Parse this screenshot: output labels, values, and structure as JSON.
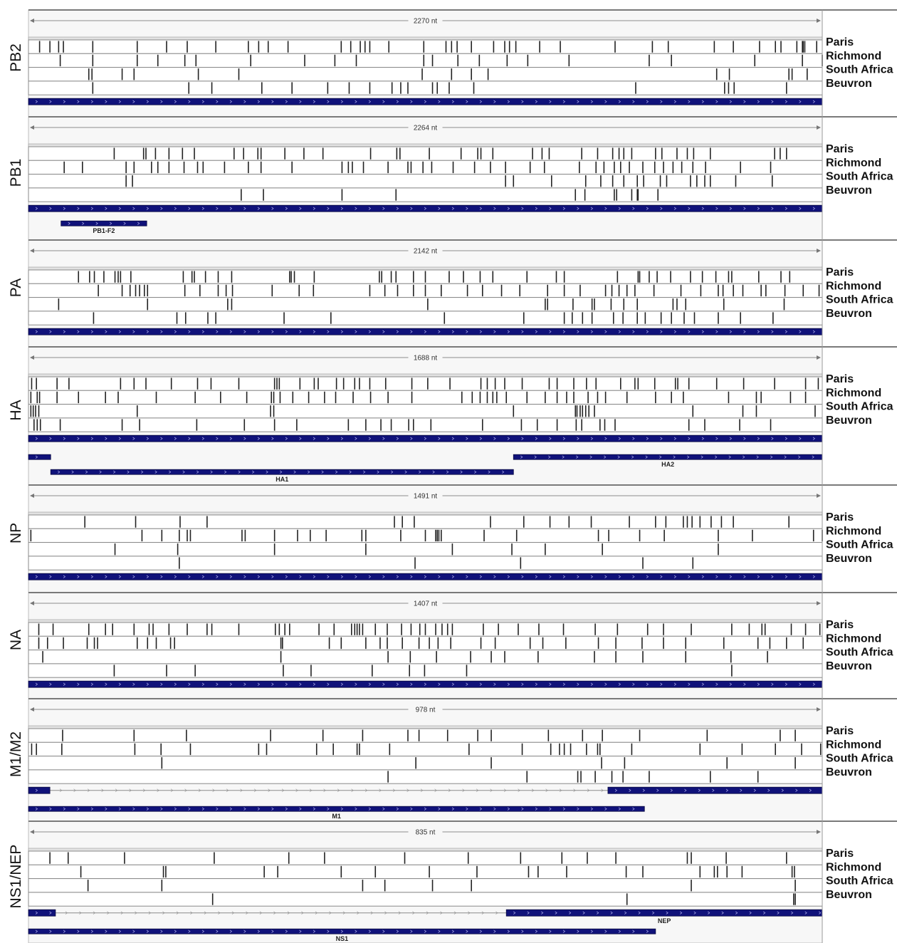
{
  "strains": [
    "Paris",
    "Richmond",
    "South Africa",
    "Beuvron"
  ],
  "segments": [
    {
      "name": "PB2",
      "length_label": "2270 nt",
      "mutations": [
        [
          0.014,
          0.027,
          0.038,
          0.044,
          0.081,
          0.137,
          0.174,
          0.2,
          0.236,
          0.277,
          0.29,
          0.302,
          0.327,
          0.394,
          0.406,
          0.418,
          0.424,
          0.43,
          0.454,
          0.498,
          0.526,
          0.533,
          0.54,
          0.558,
          0.586,
          0.6,
          0.606,
          0.614,
          0.644,
          0.67,
          0.739,
          0.786,
          0.806,
          0.864,
          0.888,
          0.921,
          0.941,
          0.948,
          0.968,
          0.975,
          0.976,
          0.978,
          0.993
        ],
        [
          0.04,
          0.081,
          0.137,
          0.163,
          0.197,
          0.211,
          0.28,
          0.348,
          0.386,
          0.413,
          0.498,
          0.509,
          0.541,
          0.568,
          0.603,
          0.629,
          0.681,
          0.782,
          0.81,
          0.915,
          0.975,
          1.0
        ],
        [
          0.076,
          0.08,
          0.118,
          0.133,
          0.214,
          0.265,
          0.496,
          0.533,
          0.558,
          0.579,
          0.867,
          0.883,
          0.958,
          0.962,
          0.981
        ],
        [
          0.081,
          0.202,
          0.231,
          0.294,
          0.332,
          0.377,
          0.404,
          0.43,
          0.458,
          0.469,
          0.478,
          0.509,
          0.515,
          0.53,
          0.561,
          0.765,
          0.877,
          0.882,
          0.889,
          0.955
        ]
      ],
      "genes": []
    },
    {
      "name": "PB1",
      "length_label": "2264 nt",
      "mutations": [
        [
          0.108,
          0.145,
          0.148,
          0.16,
          0.177,
          0.194,
          0.209,
          0.259,
          0.271,
          0.289,
          0.293,
          0.323,
          0.347,
          0.371,
          0.431,
          0.464,
          0.468,
          0.505,
          0.545,
          0.566,
          0.57,
          0.585,
          0.635,
          0.647,
          0.656,
          0.697,
          0.717,
          0.736,
          0.744,
          0.75,
          0.76,
          0.79,
          0.798,
          0.817,
          0.83,
          0.838,
          0.859,
          0.94,
          0.947,
          0.955
        ],
        [
          0.045,
          0.068,
          0.123,
          0.133,
          0.155,
          0.163,
          0.177,
          0.196,
          0.213,
          0.22,
          0.247,
          0.277,
          0.293,
          0.332,
          0.395,
          0.403,
          0.408,
          0.422,
          0.453,
          0.478,
          0.482,
          0.497,
          0.508,
          0.535,
          0.562,
          0.582,
          0.601,
          0.632,
          0.65,
          0.694,
          0.715,
          0.725,
          0.738,
          0.746,
          0.757,
          0.774,
          0.789,
          0.8,
          0.812,
          0.823,
          0.837,
          0.853,
          0.897,
          0.935
        ],
        [
          0.123,
          0.131,
          0.601,
          0.611,
          0.659,
          0.702,
          0.721,
          0.736,
          0.75,
          0.767,
          0.775,
          0.796,
          0.804,
          0.834,
          0.842,
          0.852,
          0.859,
          0.891,
          0.937
        ],
        [
          0.268,
          0.296,
          0.395,
          0.463,
          0.689,
          0.701,
          0.738,
          0.741,
          0.76,
          0.767,
          0.768,
          0.793
        ]
      ],
      "genes": [
        {
          "label": "PB1-F2",
          "start": 0.041,
          "end": 0.149,
          "row": 1
        }
      ]
    },
    {
      "name": "PA",
      "length_label": "2142 nt",
      "mutations": [
        [
          0.063,
          0.077,
          0.083,
          0.095,
          0.109,
          0.113,
          0.116,
          0.129,
          0.195,
          0.206,
          0.209,
          0.223,
          0.239,
          0.256,
          0.329,
          0.331,
          0.335,
          0.36,
          0.442,
          0.445,
          0.457,
          0.463,
          0.485,
          0.5,
          0.53,
          0.548,
          0.569,
          0.585,
          0.628,
          0.665,
          0.675,
          0.742,
          0.768,
          0.77,
          0.782,
          0.792,
          0.809,
          0.834,
          0.849,
          0.866,
          0.882,
          0.886,
          0.92,
          0.948,
          0.959
        ],
        [
          0.088,
          0.118,
          0.128,
          0.135,
          0.14,
          0.146,
          0.15,
          0.197,
          0.216,
          0.239,
          0.249,
          0.257,
          0.307,
          0.341,
          0.359,
          0.43,
          0.449,
          0.465,
          0.485,
          0.5,
          0.52,
          0.553,
          0.572,
          0.596,
          0.619,
          0.654,
          0.675,
          0.695,
          0.727,
          0.735,
          0.744,
          0.754,
          0.764,
          0.788,
          0.822,
          0.847,
          0.869,
          0.875,
          0.888,
          0.9,
          0.923,
          0.929,
          0.953,
          0.976,
          0.996
        ],
        [
          0.038,
          0.15,
          0.251,
          0.256,
          0.503,
          0.651,
          0.654,
          0.686,
          0.71,
          0.713,
          0.734,
          0.75,
          0.767,
          0.812,
          0.817,
          0.828,
          0.876,
          0.952
        ],
        [
          0.082,
          0.187,
          0.198,
          0.226,
          0.236,
          0.322,
          0.381,
          0.524,
          0.624,
          0.675,
          0.685,
          0.698,
          0.71,
          0.737,
          0.749,
          0.767,
          0.777,
          0.797,
          0.81,
          0.826,
          0.839,
          0.869,
          0.897,
          0.938
        ]
      ],
      "genes": []
    },
    {
      "name": "HA",
      "length_label": "1688 nt",
      "mutations": [
        [
          0.004,
          0.01,
          0.036,
          0.051,
          0.116,
          0.133,
          0.148,
          0.18,
          0.213,
          0.23,
          0.265,
          0.31,
          0.313,
          0.316,
          0.342,
          0.36,
          0.365,
          0.388,
          0.397,
          0.411,
          0.417,
          0.43,
          0.45,
          0.483,
          0.503,
          0.531,
          0.57,
          0.578,
          0.588,
          0.6,
          0.622,
          0.656,
          0.666,
          0.687,
          0.703,
          0.715,
          0.746,
          0.764,
          0.768,
          0.789,
          0.815,
          0.818,
          0.832,
          0.867,
          0.901,
          0.94,
          0.979,
          0.995
        ],
        [
          0.003,
          0.011,
          0.014,
          0.036,
          0.063,
          0.097,
          0.113,
          0.161,
          0.21,
          0.242,
          0.275,
          0.306,
          0.309,
          0.317,
          0.333,
          0.353,
          0.373,
          0.387,
          0.409,
          0.431,
          0.453,
          0.483,
          0.546,
          0.559,
          0.569,
          0.578,
          0.585,
          0.59,
          0.602,
          0.628,
          0.651,
          0.666,
          0.678,
          0.687,
          0.705,
          0.717,
          0.727,
          0.754,
          0.79,
          0.81,
          0.825,
          0.882,
          0.917,
          0.923,
          0.96,
          0.979
        ],
        [
          0.003,
          0.006,
          0.009,
          0.013,
          0.137,
          0.305,
          0.309,
          0.611,
          0.689,
          0.691,
          0.695,
          0.698,
          0.702,
          0.706,
          0.713,
          0.837,
          0.9,
          0.917,
          0.991
        ],
        [
          0.007,
          0.011,
          0.015,
          0.04,
          0.118,
          0.14,
          0.212,
          0.272,
          0.31,
          0.338,
          0.403,
          0.425,
          0.444,
          0.457,
          0.479,
          0.485,
          0.507,
          0.572,
          0.621,
          0.641,
          0.666,
          0.69,
          0.697,
          0.72,
          0.726,
          0.739,
          0.832,
          0.852,
          0.896,
          0.935
        ]
      ],
      "genes": [
        {
          "label": "",
          "start": 0.0,
          "end": 0.028,
          "row": 1
        },
        {
          "label": "HA2",
          "start": 0.611,
          "end": 1.0,
          "row": 1
        },
        {
          "label": "HA1",
          "start": 0.028,
          "end": 0.611,
          "row": 2
        }
      ]
    },
    {
      "name": "NP",
      "length_label": "1491 nt",
      "mutations": [
        [
          0.071,
          0.135,
          0.191,
          0.225,
          0.461,
          0.471,
          0.486,
          0.582,
          0.624,
          0.657,
          0.681,
          0.709,
          0.757,
          0.79,
          0.803,
          0.825,
          0.83,
          0.836,
          0.846,
          0.86,
          0.873,
          0.888,
          0.958
        ],
        [
          0.003,
          0.143,
          0.168,
          0.19,
          0.2,
          0.204,
          0.269,
          0.273,
          0.31,
          0.339,
          0.355,
          0.375,
          0.42,
          0.425,
          0.469,
          0.5,
          0.513,
          0.515,
          0.517,
          0.52,
          0.574,
          0.615,
          0.718,
          0.731,
          0.77,
          0.801,
          0.869,
          0.912,
          0.989,
          1.0
        ],
        [
          0.109,
          0.188,
          0.31,
          0.425,
          0.534,
          0.609,
          0.651,
          0.723,
          0.869
        ],
        [
          0.19,
          0.487,
          0.62,
          0.774,
          0.837
        ]
      ],
      "genes": []
    },
    {
      "name": "NA",
      "length_label": "1407 nt",
      "mutations": [
        [
          0.013,
          0.031,
          0.076,
          0.097,
          0.106,
          0.133,
          0.152,
          0.157,
          0.177,
          0.2,
          0.225,
          0.231,
          0.265,
          0.311,
          0.316,
          0.323,
          0.329,
          0.366,
          0.385,
          0.407,
          0.411,
          0.414,
          0.417,
          0.421,
          0.437,
          0.452,
          0.47,
          0.482,
          0.493,
          0.5,
          0.513,
          0.521,
          0.528,
          0.534,
          0.573,
          0.592,
          0.617,
          0.643,
          0.674,
          0.714,
          0.742,
          0.78,
          0.8,
          0.835,
          0.886,
          0.908,
          0.924,
          0.928,
          0.961,
          0.979,
          0.997
        ],
        [
          0.013,
          0.024,
          0.044,
          0.074,
          0.083,
          0.087,
          0.137,
          0.15,
          0.161,
          0.179,
          0.184,
          0.318,
          0.32,
          0.379,
          0.394,
          0.425,
          0.443,
          0.452,
          0.471,
          0.492,
          0.505,
          0.516,
          0.532,
          0.57,
          0.588,
          0.632,
          0.648,
          0.677,
          0.718,
          0.74,
          0.773,
          0.8,
          0.828,
          0.876,
          0.919,
          0.934,
          0.955,
          0.976
        ],
        [
          0.018,
          0.318,
          0.453,
          0.481,
          0.514,
          0.557,
          0.583,
          0.6,
          0.642,
          0.713,
          0.74,
          0.774,
          0.828,
          0.885,
          0.931
        ],
        [
          0.108,
          0.174,
          0.21,
          0.321,
          0.356,
          0.433,
          0.48,
          0.499,
          0.552,
          0.886
        ]
      ],
      "genes": []
    },
    {
      "name": "M1/M2",
      "length_label": "978 nt",
      "mutations": [
        [
          0.043,
          0.133,
          0.199,
          0.305,
          0.371,
          0.421,
          0.478,
          0.492,
          0.528,
          0.566,
          0.583,
          0.655,
          0.698,
          0.723,
          0.77,
          0.855,
          0.947,
          0.966
        ],
        [
          0.004,
          0.01,
          0.042,
          0.134,
          0.167,
          0.204,
          0.29,
          0.3,
          0.363,
          0.384,
          0.414,
          0.417,
          0.455,
          0.555,
          0.622,
          0.658,
          0.669,
          0.675,
          0.683,
          0.703,
          0.717,
          0.72,
          0.76,
          0.846,
          0.899,
          0.941,
          0.974,
          0.998
        ],
        [
          0.168,
          0.488,
          0.583,
          0.722,
          0.751,
          0.88,
          0.966
        ],
        [
          0.453,
          0.628,
          0.692,
          0.696,
          0.714,
          0.735,
          0.749,
          0.782,
          0.859,
          0.919
        ]
      ],
      "genes": [
        {
          "label": "",
          "start": 0.0,
          "end": 0.027,
          "row": 0,
          "intron_end": 0.73
        },
        {
          "label": "",
          "start": 0.73,
          "end": 1.0,
          "row": 0
        },
        {
          "label": "M1",
          "start": 0.0,
          "end": 0.776,
          "row": 1
        }
      ]
    },
    {
      "name": "NS1/NEP",
      "length_label": "835 nt",
      "mutations": [
        [
          0.027,
          0.05,
          0.121,
          0.234,
          0.328,
          0.373,
          0.474,
          0.554,
          0.62,
          0.672,
          0.704,
          0.74,
          0.83,
          0.835,
          0.879,
          0.955
        ],
        [
          0.066,
          0.17,
          0.173,
          0.297,
          0.314,
          0.394,
          0.437,
          0.505,
          0.565,
          0.63,
          0.642,
          0.678,
          0.753,
          0.774,
          0.846,
          0.864,
          0.868,
          0.88,
          0.899,
          0.962,
          0.965
        ],
        [
          0.075,
          0.168,
          0.421,
          0.449,
          0.509,
          0.558,
          0.835,
          0.966
        ],
        [
          0.232,
          0.754,
          0.964,
          0.966
        ]
      ],
      "genes": [
        {
          "label": "",
          "start": 0.0,
          "end": 0.034,
          "row": 0,
          "intron_end": 0.602
        },
        {
          "label": "NEP",
          "start": 0.602,
          "end": 1.0,
          "row": 0
        },
        {
          "label": "NS1",
          "start": 0.0,
          "end": 0.79,
          "row": 1
        }
      ]
    }
  ]
}
